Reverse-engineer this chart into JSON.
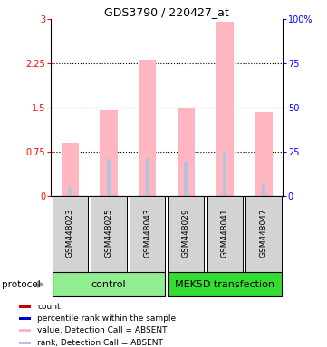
{
  "title": "GDS3790 / 220427_at",
  "samples": [
    "GSM448023",
    "GSM448025",
    "GSM448043",
    "GSM448029",
    "GSM448041",
    "GSM448047"
  ],
  "value_bars": [
    0.9,
    1.45,
    2.32,
    1.48,
    2.95,
    1.42
  ],
  "rank_bars": [
    0.13,
    0.62,
    0.65,
    0.58,
    0.75,
    0.22
  ],
  "value_color": "#ffb6c1",
  "rank_color": "#b0c4de",
  "left_yticks": [
    0,
    0.75,
    1.5,
    2.25,
    3
  ],
  "left_yticklabels": [
    "0",
    "0.75",
    "1.5",
    "2.25",
    "3"
  ],
  "right_yticklabels": [
    "0",
    "25",
    "50",
    "75",
    "100%"
  ],
  "legend_items": [
    {
      "color": "#cc0000",
      "label": "count"
    },
    {
      "color": "#0000cc",
      "label": "percentile rank within the sample"
    },
    {
      "color": "#ffb6c1",
      "label": "value, Detection Call = ABSENT"
    },
    {
      "color": "#b0c4de",
      "label": "rank, Detection Call = ABSENT"
    }
  ],
  "ctrl_color": "#90ee90",
  "mek_color": "#33dd33",
  "sample_box_color": "#d3d3d3",
  "figsize": [
    3.61,
    3.84
  ],
  "dpi": 100
}
